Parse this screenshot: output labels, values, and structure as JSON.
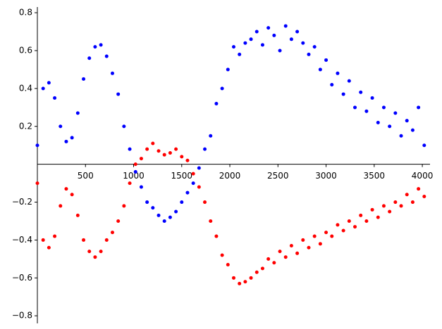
{
  "chart_data": {
    "type": "scatter",
    "x": [
      0,
      60,
      120,
      180,
      240,
      300,
      360,
      420,
      480,
      540,
      600,
      660,
      720,
      780,
      840,
      900,
      960,
      1020,
      1080,
      1140,
      1200,
      1260,
      1320,
      1380,
      1440,
      1500,
      1560,
      1620,
      1680,
      1740,
      1800,
      1860,
      1920,
      1980,
      2040,
      2100,
      2160,
      2220,
      2280,
      2340,
      2400,
      2460,
      2520,
      2580,
      2640,
      2700,
      2760,
      2820,
      2880,
      2940,
      3000,
      3060,
      3120,
      3180,
      3240,
      3300,
      3360,
      3420,
      3480,
      3540,
      3600,
      3660,
      3720,
      3780,
      3840,
      3900,
      3960,
      4020
    ],
    "series": [
      {
        "color": "#0000ff",
        "values": [
          0.1,
          0.4,
          0.43,
          0.35,
          0.2,
          0.12,
          0.14,
          0.27,
          0.45,
          0.56,
          0.62,
          0.63,
          0.57,
          0.48,
          0.37,
          0.2,
          0.08,
          -0.04,
          -0.12,
          -0.2,
          -0.23,
          -0.27,
          -0.3,
          -0.28,
          -0.25,
          -0.2,
          -0.15,
          -0.1,
          -0.02,
          0.08,
          0.15,
          0.32,
          0.4,
          0.5,
          0.62,
          0.58,
          0.64,
          0.66,
          0.7,
          0.63,
          0.72,
          0.68,
          0.6,
          0.73,
          0.66,
          0.7,
          0.64,
          0.58,
          0.62,
          0.5,
          0.55,
          0.42,
          0.48,
          0.37,
          0.44,
          0.3,
          0.38,
          0.28,
          0.35,
          0.22,
          0.3,
          0.2,
          0.27,
          0.15,
          0.23,
          0.18,
          0.3,
          0.1
        ]
      },
      {
        "color": "#ff0000",
        "values": [
          -0.1,
          -0.4,
          -0.44,
          -0.38,
          -0.22,
          -0.13,
          -0.16,
          -0.27,
          -0.4,
          -0.46,
          -0.49,
          -0.46,
          -0.4,
          -0.36,
          -0.3,
          -0.22,
          -0.1,
          0.0,
          0.03,
          0.08,
          0.11,
          0.07,
          0.05,
          0.06,
          0.08,
          0.04,
          0.02,
          -0.05,
          -0.12,
          -0.2,
          -0.3,
          -0.38,
          -0.48,
          -0.53,
          -0.6,
          -0.63,
          -0.62,
          -0.6,
          -0.57,
          -0.55,
          -0.5,
          -0.52,
          -0.46,
          -0.49,
          -0.43,
          -0.47,
          -0.4,
          -0.44,
          -0.38,
          -0.42,
          -0.36,
          -0.38,
          -0.32,
          -0.35,
          -0.3,
          -0.33,
          -0.27,
          -0.3,
          -0.24,
          -0.28,
          -0.22,
          -0.25,
          -0.2,
          -0.22,
          -0.16,
          -0.2,
          -0.13,
          -0.17
        ]
      }
    ],
    "xlim": [
      0,
      4080
    ],
    "ylim": [
      -0.84,
      0.83
    ],
    "xticks": [
      500,
      1000,
      1500,
      2000,
      2500,
      3000,
      3500,
      4000
    ],
    "yticks": [
      {
        "value": -0.8,
        "label": "−0.8"
      },
      {
        "value": -0.6,
        "label": "−0.6"
      },
      {
        "value": -0.4,
        "label": "−0.4"
      },
      {
        "value": -0.2,
        "label": "−0.2"
      },
      0.2,
      0.4,
      0.6,
      0.8
    ]
  }
}
